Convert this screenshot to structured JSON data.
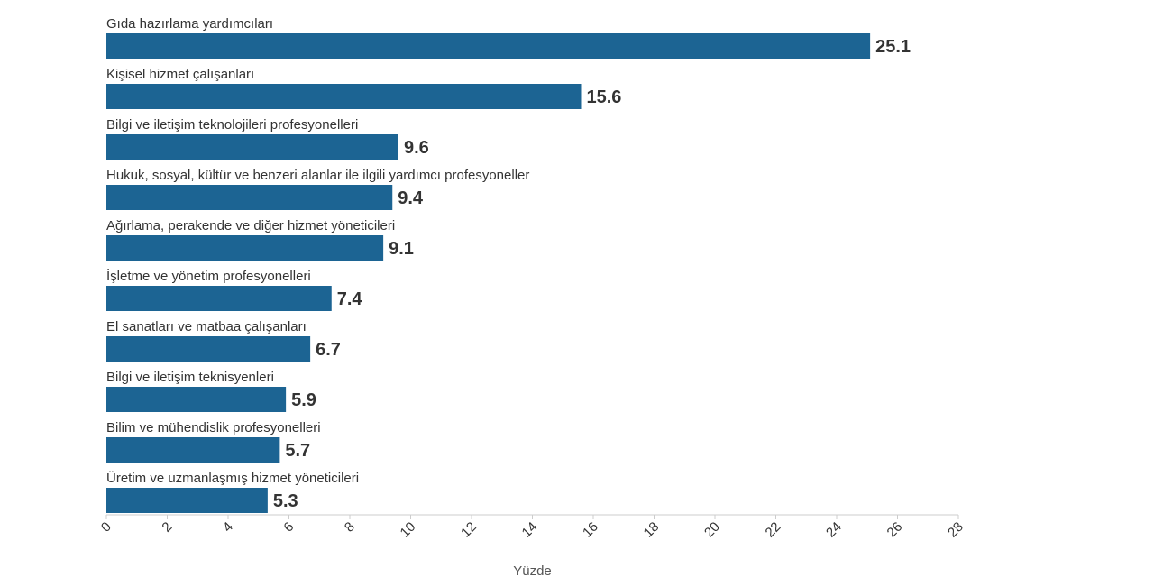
{
  "chart_data": {
    "type": "bar",
    "orientation": "horizontal",
    "categories": [
      "Gıda hazırlama yardımcıları",
      "Kişisel hizmet çalışanları",
      "Bilgi ve iletişim teknolojileri profesyonelleri",
      "Hukuk, sosyal, kültür ve benzeri alanlar ile ilgili yardımcı profesyoneller",
      "Ağırlama, perakende ve diğer hizmet yöneticileri",
      "İşletme ve yönetim profesyonelleri",
      "El sanatları ve matbaa çalışanları",
      "Bilgi ve iletişim teknisyenleri",
      "Bilim ve mühendislik profesyonelleri",
      "Üretim ve uzmanlaşmış hizmet yöneticileri"
    ],
    "values": [
      25.1,
      15.6,
      9.6,
      9.4,
      9.1,
      7.4,
      6.7,
      5.9,
      5.7,
      5.3
    ],
    "xlabel": "Yüzde",
    "xlim": [
      0,
      28
    ],
    "xticks": [
      0,
      2,
      4,
      6,
      8,
      10,
      12,
      14,
      16,
      18,
      20,
      22,
      24,
      26,
      28
    ],
    "grid": false,
    "bar_color": "#1c6493"
  }
}
